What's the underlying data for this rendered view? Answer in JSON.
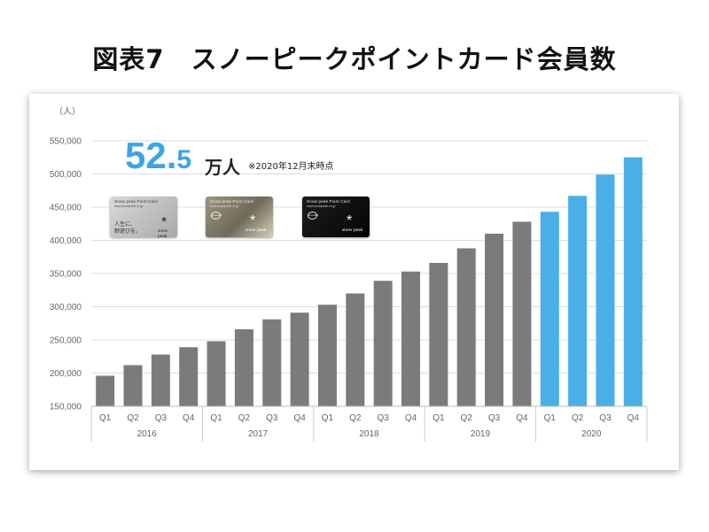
{
  "page_title": "図表7　スノーピークポイントカード会員数",
  "highlight": {
    "value_main": "52.",
    "value_decimal": "5",
    "unit": "万人",
    "note": "※2020年12月末時点"
  },
  "cards": {
    "header": "Snow peak Point Card",
    "url": "www.snowpeak.co.jp",
    "brand": "snow peak",
    "star": "*",
    "silver_slogan": "人生に、\n野遊びを。",
    "emblem": "snowpeak"
  },
  "colors": {
    "bar_default": "#7b7b7b",
    "bar_highlight": "#4aaee8",
    "highlight_text": "#3aa6e4",
    "grid": "#dddddd"
  },
  "chart_data": {
    "type": "bar",
    "ylabel": "（人）",
    "ylim": [
      150000,
      550000
    ],
    "yticks": [
      150000,
      200000,
      250000,
      300000,
      350000,
      400000,
      450000,
      500000,
      550000
    ],
    "ytick_labels": [
      "150,000",
      "200,000",
      "250,000",
      "300,000",
      "350,000",
      "400,000",
      "450,000",
      "500,000",
      "550,000"
    ],
    "grid": true,
    "quarters": [
      "Q1",
      "Q2",
      "Q3",
      "Q4"
    ],
    "years": [
      "2016",
      "2017",
      "2018",
      "2019",
      "2020"
    ],
    "highlight_year": "2020",
    "values": [
      196000,
      212000,
      228000,
      239000,
      248000,
      266000,
      281000,
      291000,
      303000,
      320000,
      339000,
      353000,
      366000,
      388000,
      410000,
      428000,
      443000,
      467000,
      499000,
      525000
    ]
  }
}
